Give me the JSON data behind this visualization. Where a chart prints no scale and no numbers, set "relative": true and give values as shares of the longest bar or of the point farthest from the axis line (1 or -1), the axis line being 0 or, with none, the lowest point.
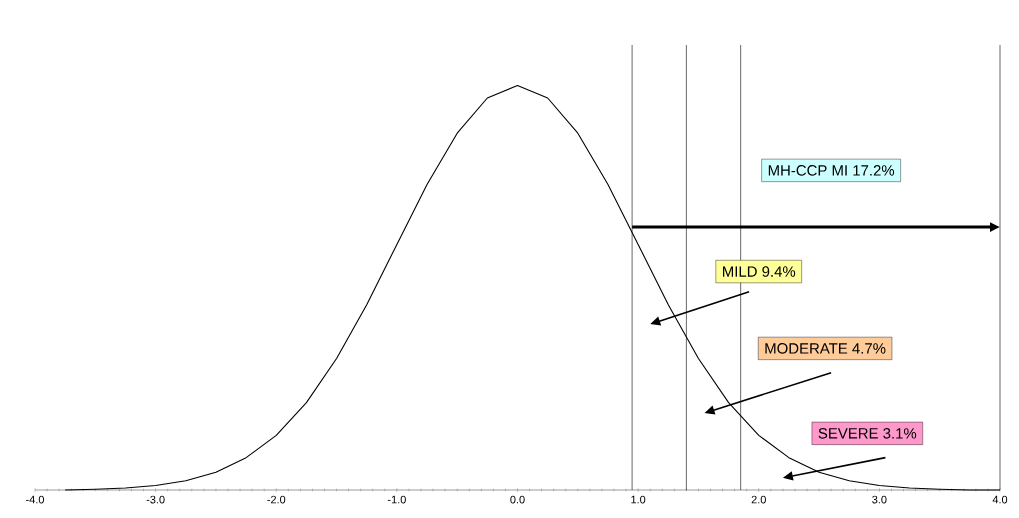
{
  "chart_data": {
    "type": "line",
    "relative": true,
    "color": "#000000",
    "marker": "none",
    "grid": false,
    "x": [
      -3.75,
      -3.5,
      -3.25,
      -3.0,
      -2.75,
      -2.5,
      -2.25,
      -2.0,
      -1.75,
      -1.5,
      -1.25,
      -1.0,
      -0.75,
      -0.5,
      -0.25,
      0.0,
      0.25,
      0.5,
      0.75,
      1.0,
      1.25,
      1.5,
      1.75,
      2.0,
      2.25,
      2.5,
      2.75,
      3.0,
      3.25,
      3.5,
      3.75,
      4.0
    ],
    "values": [
      0.0,
      0.002,
      0.005,
      0.011,
      0.023,
      0.044,
      0.08,
      0.135,
      0.216,
      0.325,
      0.458,
      0.607,
      0.755,
      0.882,
      0.969,
      1.0,
      0.969,
      0.882,
      0.755,
      0.607,
      0.458,
      0.325,
      0.216,
      0.135,
      0.08,
      0.044,
      0.023,
      0.011,
      0.005,
      0.002,
      0.0,
      0.0
    ],
    "xlim": [
      -4.0,
      4.0
    ],
    "xticks": [
      {
        "value": -4,
        "label": "-4.0"
      },
      {
        "value": -3,
        "label": "-3.0"
      },
      {
        "value": -2,
        "label": "-2.0"
      },
      {
        "value": -1,
        "label": "-1.0"
      },
      {
        "value": 0,
        "label": "0.0"
      },
      {
        "value": 1,
        "label": "1.0"
      },
      {
        "value": 2,
        "label": "2.0"
      },
      {
        "value": 3,
        "label": "3.0"
      },
      {
        "value": 4,
        "label": "4.0"
      }
    ],
    "ref_lines": [
      {
        "axis": "x",
        "value": 0.95,
        "color": "#000000"
      },
      {
        "axis": "x",
        "value": 1.4,
        "color": "#000000"
      },
      {
        "axis": "x",
        "value": 1.85,
        "color": "#000000"
      },
      {
        "axis": "x",
        "value": 4.0,
        "color": "#000000"
      }
    ],
    "annotations": [
      "MH-CCP MI 17.2%",
      "MILD 9.4%",
      "MODERATE 4.7%",
      "SEVERE 3.1%"
    ]
  }
}
